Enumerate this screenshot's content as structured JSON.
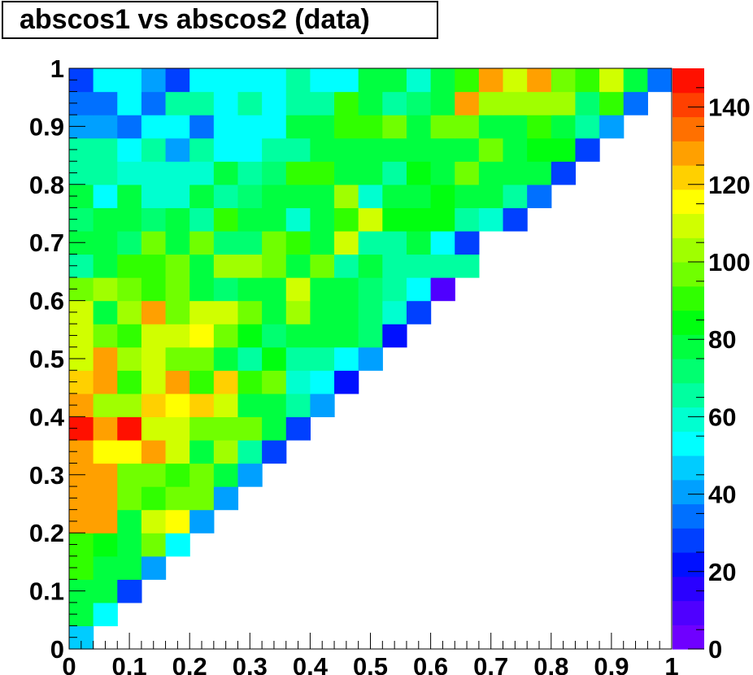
{
  "chart_data": {
    "type": "heatmap",
    "title": "abscos1 vs abscos2 (data)",
    "xlabel": "",
    "ylabel": "",
    "xlim": [
      0,
      1
    ],
    "ylim": [
      0,
      1
    ],
    "zlim": [
      0,
      150
    ],
    "x_tick_labels": [
      "0",
      "0.1",
      "0.2",
      "0.3",
      "0.4",
      "0.5",
      "0.6",
      "0.7",
      "0.8",
      "0.9",
      "1"
    ],
    "y_tick_labels": [
      "0",
      "0.1",
      "0.2",
      "0.3",
      "0.4",
      "0.5",
      "0.6",
      "0.7",
      "0.8",
      "0.9",
      "1"
    ],
    "z_tick_labels": [
      "0",
      "20",
      "40",
      "60",
      "80",
      "100",
      "120",
      "140"
    ],
    "z_ticks": [
      0,
      20,
      40,
      60,
      80,
      100,
      120,
      140
    ],
    "x_bins": 25,
    "y_bins": 25,
    "bin_width": 0.04,
    "grid": false,
    "colorbar": "right",
    "palette": [
      "#6f00ff",
      "#4f00ff",
      "#2a00ff",
      "#0010ff",
      "#0040ff",
      "#0070ff",
      "#00a0ff",
      "#00ccff",
      "#00ffff",
      "#00ffd0",
      "#00ffa0",
      "#00ff70",
      "#00ff40",
      "#00ff10",
      "#30ff00",
      "#70ff00",
      "#a0ff00",
      "#d0ff00",
      "#ffff00",
      "#ffd000",
      "#ffa000",
      "#ff7000",
      "#ff4000",
      "#ff1000"
    ],
    "rows": [
      [
        45
      ],
      [
        75,
        50
      ],
      [
        75,
        78,
        30
      ],
      [
        88,
        80,
        78,
        40
      ],
      [
        88,
        85,
        77,
        95,
        55
      ],
      [
        125,
        125,
        78,
        108,
        113,
        40
      ],
      [
        130,
        125,
        95,
        90,
        98,
        95,
        40
      ],
      [
        130,
        125,
        98,
        98,
        90,
        95,
        78,
        40
      ],
      [
        125,
        115,
        115,
        130,
        110,
        75,
        103,
        65,
        30
      ],
      [
        150,
        130,
        150,
        108,
        108,
        98,
        98,
        98,
        75,
        30
      ],
      [
        130,
        105,
        105,
        123,
        113,
        123,
        112,
        75,
        75,
        65,
        40
      ],
      [
        123,
        130,
        90,
        108,
        130,
        90,
        123,
        90,
        95,
        60,
        50,
        20
      ],
      [
        108,
        130,
        105,
        110,
        98,
        98,
        75,
        68,
        85,
        65,
        65,
        55,
        40
      ],
      [
        108,
        95,
        90,
        110,
        110,
        115,
        95,
        85,
        70,
        75,
        75,
        75,
        70,
        20
      ],
      [
        108,
        80,
        105,
        125,
        98,
        108,
        108,
        95,
        80,
        105,
        75,
        75,
        70,
        60,
        30
      ],
      [
        98,
        105,
        95,
        90,
        98,
        75,
        70,
        78,
        78,
        110,
        78,
        78,
        70,
        65,
        55,
        10
      ],
      [
        65,
        75,
        90,
        90,
        98,
        78,
        100,
        105,
        95,
        75,
        95,
        68,
        75,
        68,
        68,
        68,
        65
      ],
      [
        75,
        80,
        70,
        95,
        75,
        95,
        70,
        70,
        95,
        90,
        78,
        112,
        68,
        65,
        78,
        50,
        25
      ],
      [
        72,
        78,
        78,
        70,
        78,
        65,
        90,
        78,
        78,
        60,
        75,
        90,
        108,
        85,
        85,
        85,
        65,
        60,
        25
      ],
      [
        78,
        50,
        80,
        60,
        60,
        75,
        65,
        70,
        75,
        75,
        80,
        100,
        60,
        75,
        75,
        85,
        75,
        75,
        65,
        35
      ],
      [
        65,
        65,
        60,
        60,
        60,
        60,
        75,
        65,
        70,
        90,
        90,
        75,
        75,
        65,
        85,
        75,
        95,
        75,
        80,
        75,
        30
      ],
      [
        68,
        68,
        50,
        65,
        40,
        65,
        55,
        50,
        68,
        68,
        75,
        80,
        75,
        75,
        80,
        75,
        80,
        95,
        75,
        85,
        85,
        30
      ],
      [
        40,
        40,
        35,
        50,
        50,
        35,
        55,
        55,
        55,
        78,
        78,
        90,
        90,
        95,
        78,
        95,
        95,
        78,
        78,
        90,
        78,
        68,
        40
      ],
      [
        35,
        35,
        50,
        35,
        65,
        65,
        55,
        65,
        50,
        65,
        65,
        90,
        80,
        65,
        70,
        80,
        125,
        100,
        100,
        100,
        100,
        70,
        90,
        35
      ],
      [
        25,
        50,
        50,
        40,
        25,
        50,
        50,
        55,
        55,
        65,
        55,
        50,
        80,
        80,
        60,
        80,
        90,
        125,
        110,
        125,
        95,
        90,
        110,
        80,
        35
      ]
    ]
  }
}
